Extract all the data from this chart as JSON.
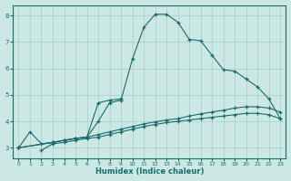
{
  "xlabel": "Humidex (Indice chaleur)",
  "bg_color": "#cce8e4",
  "grid_color": "#aaccca",
  "line_color": "#1a6b6b",
  "xlim": [
    -0.5,
    23.5
  ],
  "ylim": [
    2.6,
    8.4
  ],
  "xticks": [
    0,
    1,
    2,
    3,
    4,
    5,
    6,
    7,
    8,
    9,
    10,
    11,
    12,
    13,
    14,
    15,
    16,
    17,
    18,
    19,
    20,
    21,
    22,
    23
  ],
  "yticks": [
    3,
    4,
    5,
    6,
    7,
    8
  ],
  "line1_x": [
    0,
    1,
    2,
    3,
    4,
    5,
    6,
    7,
    8,
    9,
    10,
    11,
    12,
    13,
    14,
    15,
    16,
    17,
    18,
    19,
    20,
    21,
    22,
    23
  ],
  "line1_y": [
    3.0,
    3.6,
    3.15,
    3.2,
    3.28,
    3.35,
    3.4,
    4.0,
    4.7,
    4.8,
    6.35,
    7.55,
    8.05,
    8.05,
    7.75,
    7.1,
    7.05,
    6.5,
    5.95,
    5.9,
    5.6,
    5.3,
    4.85,
    4.1
  ],
  "line2_x": [
    2,
    3,
    4,
    5,
    6,
    7,
    8,
    9,
    10,
    11,
    12,
    13,
    14,
    15,
    16,
    17,
    18,
    19,
    20,
    21,
    22,
    23
  ],
  "line2_y": [
    2.9,
    3.15,
    3.2,
    3.28,
    3.35,
    3.4,
    3.5,
    3.6,
    3.7,
    3.8,
    3.88,
    3.95,
    4.0,
    4.05,
    4.1,
    4.15,
    4.2,
    4.25,
    4.3,
    4.3,
    4.25,
    4.1
  ],
  "line3_x": [
    0,
    3,
    4,
    5,
    6,
    7,
    8,
    9,
    10,
    11,
    12,
    13,
    14,
    15,
    16,
    17,
    18,
    19,
    20,
    21,
    22,
    23
  ],
  "line3_y": [
    3.0,
    3.2,
    3.28,
    3.35,
    3.4,
    3.5,
    3.6,
    3.7,
    3.8,
    3.9,
    3.98,
    4.05,
    4.1,
    4.2,
    4.28,
    4.35,
    4.42,
    4.5,
    4.55,
    4.55,
    4.5,
    4.35
  ],
  "line4_x": [
    0,
    3,
    4,
    5,
    6,
    7,
    8,
    9
  ],
  "line4_y": [
    3.0,
    3.2,
    3.28,
    3.35,
    3.4,
    4.7,
    4.8,
    4.85
  ]
}
